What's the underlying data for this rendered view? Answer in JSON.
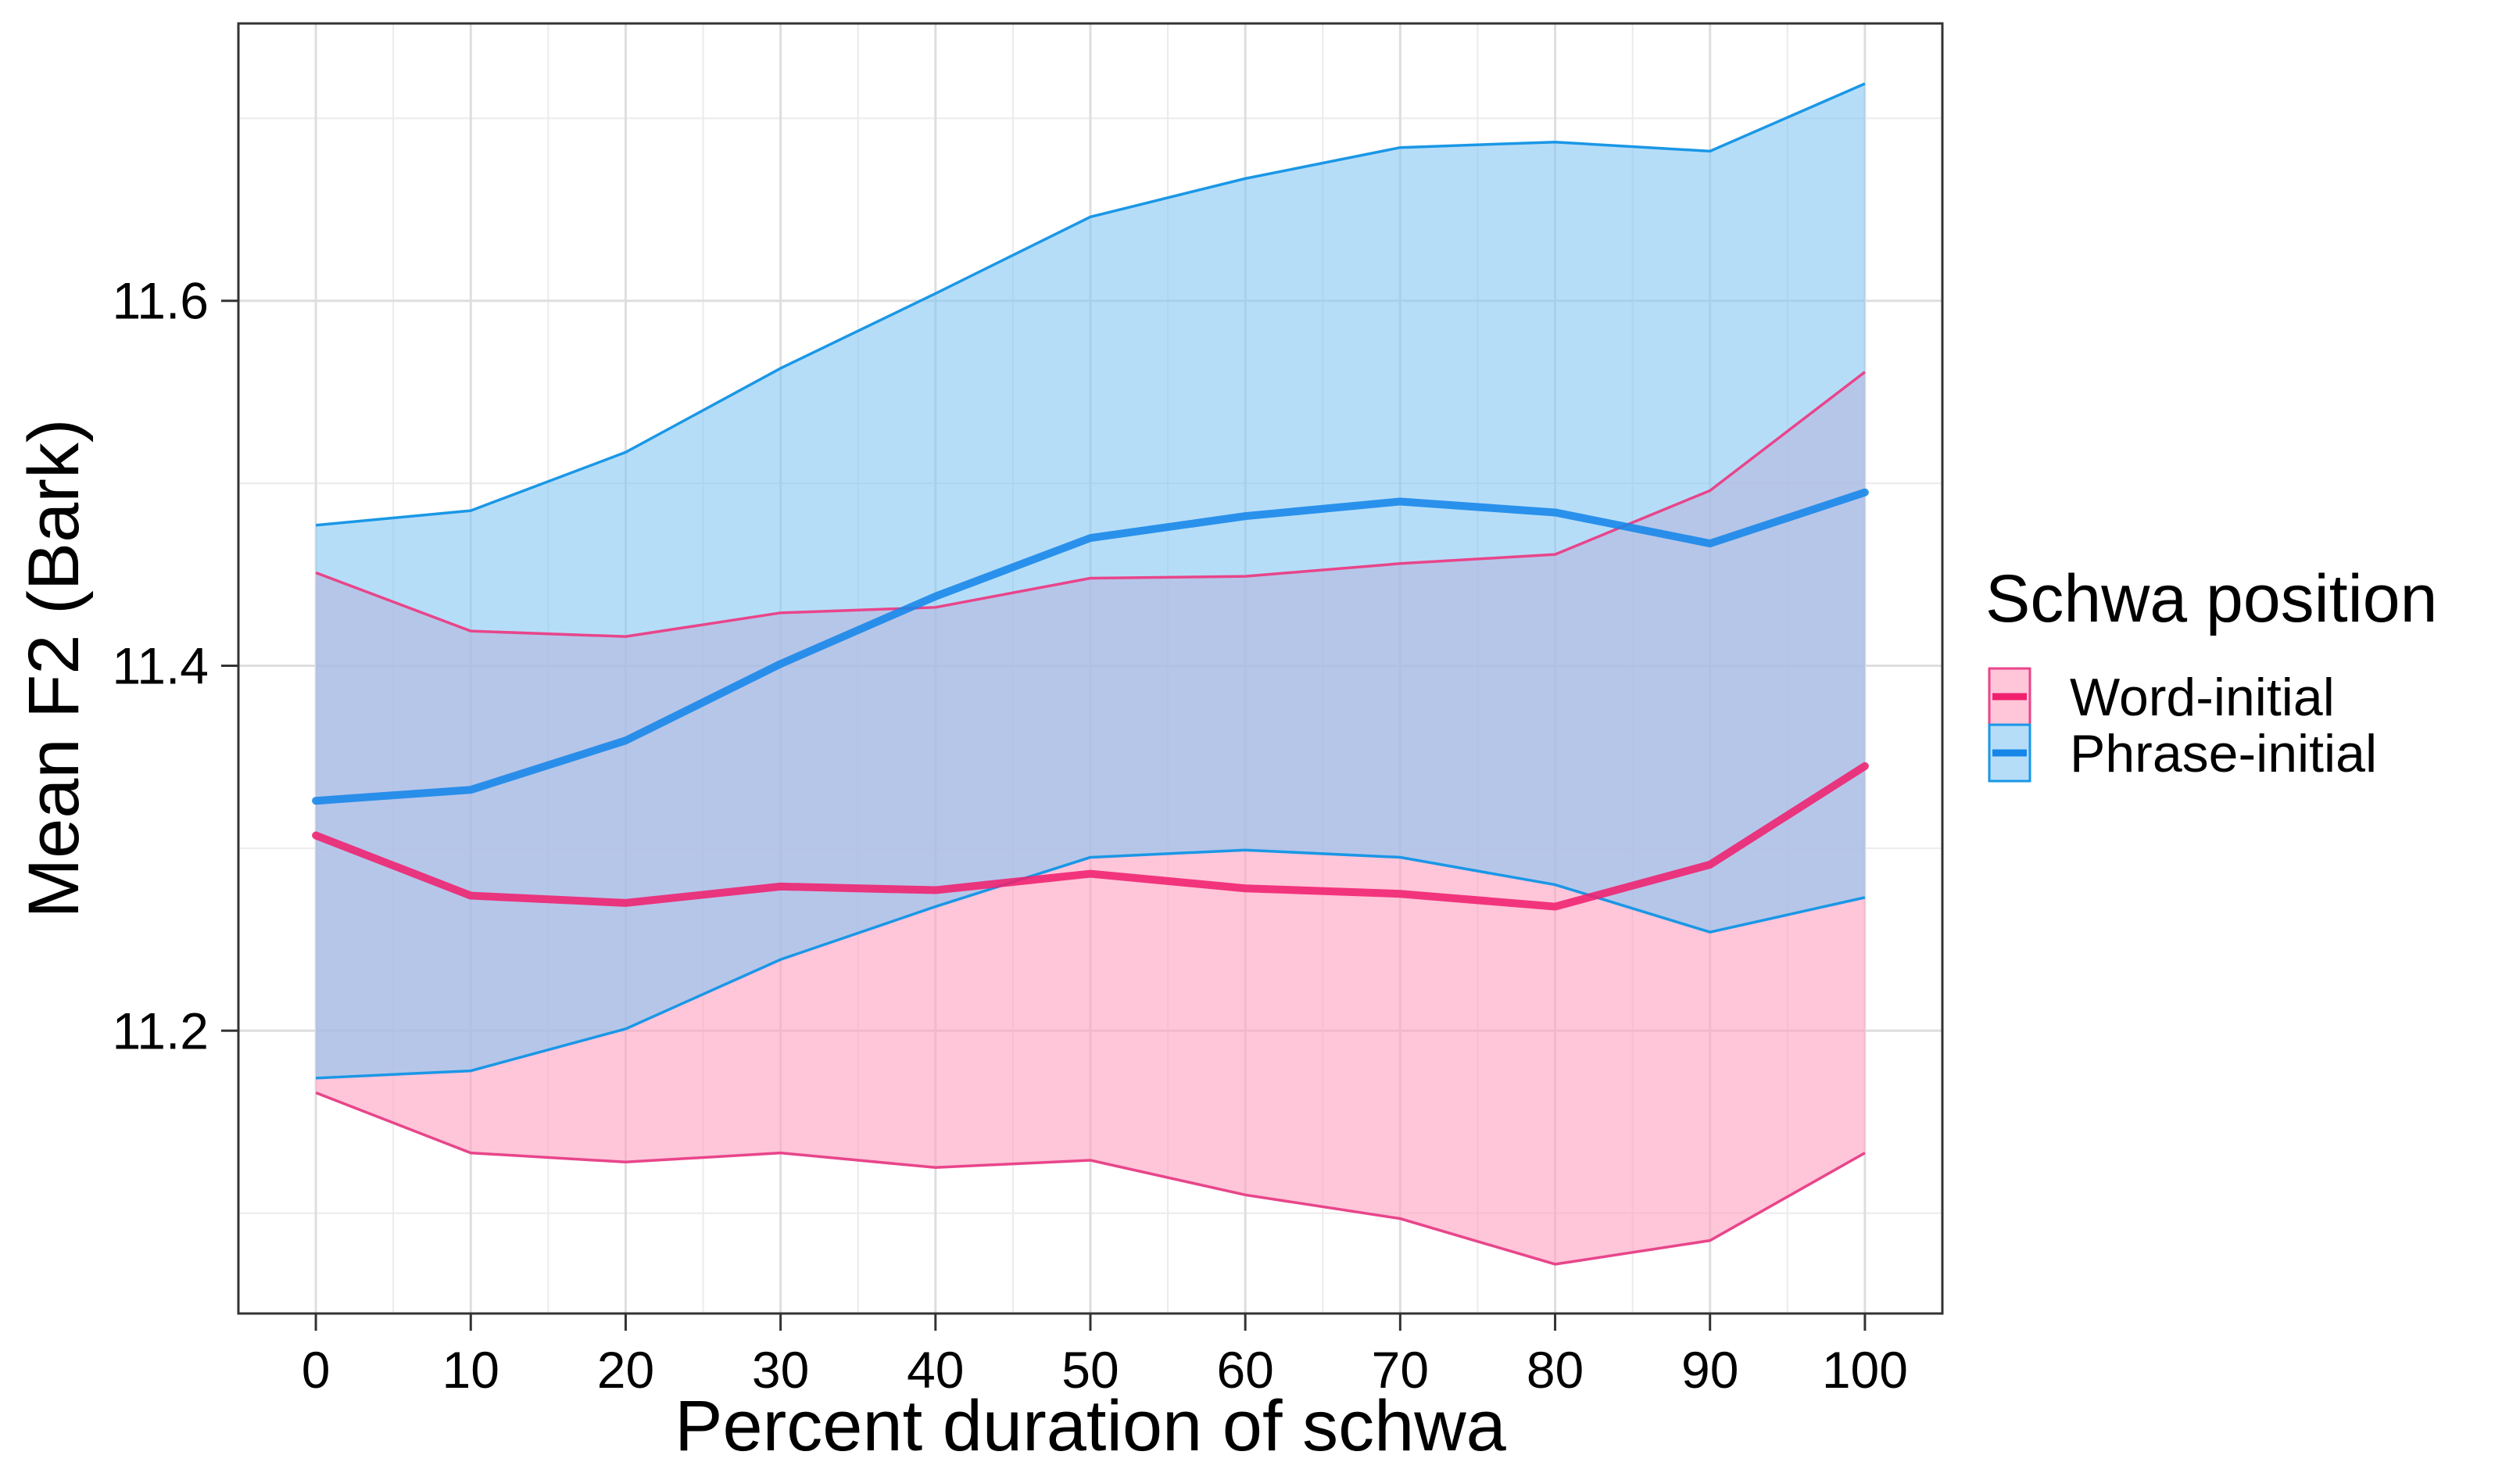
{
  "chart_data": {
    "type": "line",
    "title": "",
    "xlabel": "Percent duration of schwa",
    "ylabel": "Mean F2 (Bark)",
    "xlim": [
      -5,
      105
    ],
    "ylim": [
      11.045,
      11.752
    ],
    "x_ticks": [
      0,
      10,
      20,
      30,
      40,
      50,
      60,
      70,
      80,
      90,
      100
    ],
    "y_ticks": [
      11.2,
      11.4,
      11.6
    ],
    "y_tick_labels": [
      "11.2",
      "11.4",
      "11.6"
    ],
    "x_tick_labels": [
      "0",
      "10",
      "20",
      "30",
      "40",
      "50",
      "60",
      "70",
      "80",
      "90",
      "100"
    ],
    "grid": true,
    "legend": {
      "title": "Schwa position",
      "position": "right"
    },
    "x": [
      0,
      10,
      20,
      30,
      40,
      50,
      60,
      70,
      80,
      90,
      100
    ],
    "series": [
      {
        "name": "Word-initial",
        "line_color": "#f0206e",
        "fill_color": "#ff9fbf",
        "edge_color": "#e8458a",
        "mean": [
          11.307,
          11.274,
          11.27,
          11.279,
          11.277,
          11.286,
          11.278,
          11.275,
          11.268,
          11.291,
          11.345
        ],
        "upper": [
          11.451,
          11.419,
          11.416,
          11.429,
          11.432,
          11.448,
          11.449,
          11.456,
          11.461,
          11.496,
          11.561
        ],
        "lower": [
          11.166,
          11.133,
          11.128,
          11.133,
          11.125,
          11.129,
          11.11,
          11.097,
          11.072,
          11.085,
          11.133
        ]
      },
      {
        "name": "Phrase-initial",
        "line_color": "#1686e8",
        "fill_color": "#85c6f4",
        "edge_color": "#1a97e6",
        "mean": [
          11.326,
          11.332,
          11.359,
          11.401,
          11.438,
          11.47,
          11.482,
          11.49,
          11.484,
          11.467,
          11.495
        ],
        "upper": [
          11.477,
          11.485,
          11.517,
          11.563,
          11.604,
          11.646,
          11.667,
          11.684,
          11.687,
          11.682,
          11.719
        ],
        "lower": [
          11.174,
          11.178,
          11.201,
          11.239,
          11.268,
          11.295,
          11.299,
          11.295,
          11.28,
          11.254,
          11.273
        ]
      }
    ]
  }
}
